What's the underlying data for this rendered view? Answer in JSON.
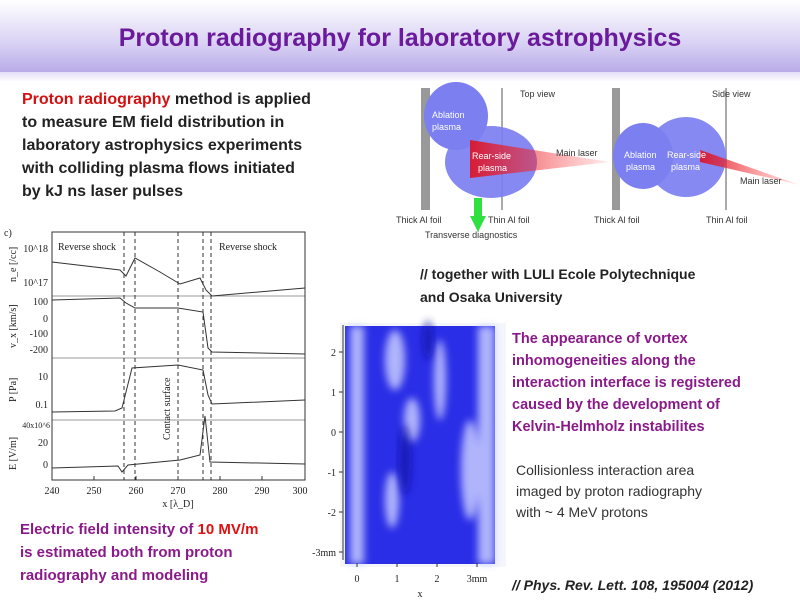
{
  "title": "Proton radiography for laboratory astrophysics",
  "intro": {
    "highlight": "Proton radiography",
    "lines": [
      " method is applied",
      "to measure EM field distribution in",
      "laboratory astrophysics experiments",
      "with colliding plasma flows initiated",
      "by kJ ns laser pulses"
    ]
  },
  "diagram": {
    "top_view": "Top view",
    "side_view": "Side view",
    "top_ablation": [
      "Ablation",
      "plasma"
    ],
    "top_rear": [
      "Rear-side",
      "plasma"
    ],
    "top_laser": "Main laser",
    "top_thick": "Thick Al foil",
    "top_thin": "Thin Al foil",
    "diagnostics": "Transverse diagnostics",
    "side_ablation": [
      "Ablation",
      "plasma"
    ],
    "side_rear": [
      "Rear-side",
      "plasma"
    ],
    "side_laser": "Main laser",
    "side_thick": "Thick Al foil",
    "side_thin": "Thin Al foil"
  },
  "collaboration": [
    "// together with LULI Ecole Polytechnique",
    "and Osaka University"
  ],
  "vortex": [
    "The appearance of vortex",
    "inhomogeneities along the",
    "interaction interface is registered",
    "caused by the development of",
    "Kelvin-Helmholz instabilites"
  ],
  "collisionless": [
    "Collisionless interaction area",
    "imaged by proton radiography",
    "with ~ 4 MeV protons"
  ],
  "efield": {
    "lead": "Electric field intensity of ",
    "highlight": "10 MV/m",
    "lines": [
      "is estimated both from proton",
      "radiography and modeling"
    ]
  },
  "reference": "// Phys. Rev. Lett. 108, 195004 (2012)",
  "simulation_plot": {
    "panel": "c)",
    "annotations": [
      "Reverse shock",
      "Reverse shock",
      "Contact surface"
    ],
    "y_labels": [
      "n_e [/cc]",
      "v_x [km/s]",
      "P [Pa]",
      "E [V/m]"
    ],
    "y_ticks": [
      "10^18",
      "10^17",
      "100",
      "0",
      "-100",
      "-200",
      "10",
      "0.1",
      "40x10^6",
      "20",
      "0"
    ],
    "x_ticks": [
      "240",
      "250",
      "260",
      "270",
      "280",
      "290",
      "300"
    ],
    "x_label": "x [λ_D]"
  },
  "radiograph": {
    "y_ticks": [
      "2",
      "1",
      "0",
      "-1",
      "-2",
      "-3mm"
    ],
    "x_ticks": [
      "0",
      "1",
      "2",
      "3mm"
    ],
    "x_label": "x"
  }
}
